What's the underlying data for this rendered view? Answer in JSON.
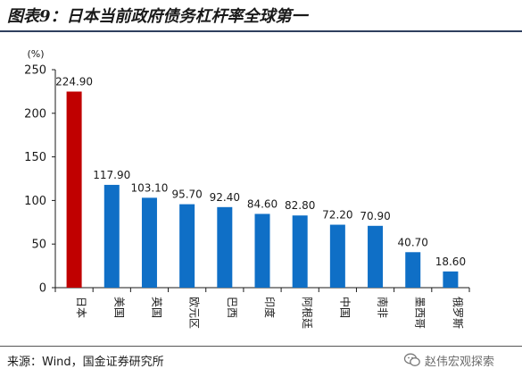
{
  "title": "图表9：日本当前政府债务杠杆率全球第一",
  "source": "来源：Wind，国金证券研究所",
  "watermark": "赵伟宏观探索",
  "colors": {
    "highlight": "#c00000",
    "bar": "#0f6fc6",
    "axis": "#1a1a1a"
  },
  "icons": {
    "watermark": "wechat-icon"
  },
  "chart_data": {
    "type": "bar",
    "unit_label": "(%)",
    "categories": [
      "日本",
      "美国",
      "英国",
      "欧元区",
      "巴西",
      "印度",
      "阿根廷",
      "中国",
      "南非",
      "墨西哥",
      "俄罗斯"
    ],
    "values": [
      224.9,
      117.9,
      103.1,
      95.7,
      92.4,
      84.6,
      82.8,
      72.2,
      70.9,
      40.7,
      18.6
    ],
    "value_labels": [
      "224.90",
      "117.90",
      "103.10",
      "95.70",
      "92.40",
      "84.60",
      "82.80",
      "72.20",
      "70.90",
      "40.70",
      "18.60"
    ],
    "highlight_index": 0,
    "ylim": [
      0,
      250
    ],
    "yticks": [
      0,
      50,
      100,
      150,
      200,
      250
    ],
    "grid": false,
    "legend": false
  }
}
